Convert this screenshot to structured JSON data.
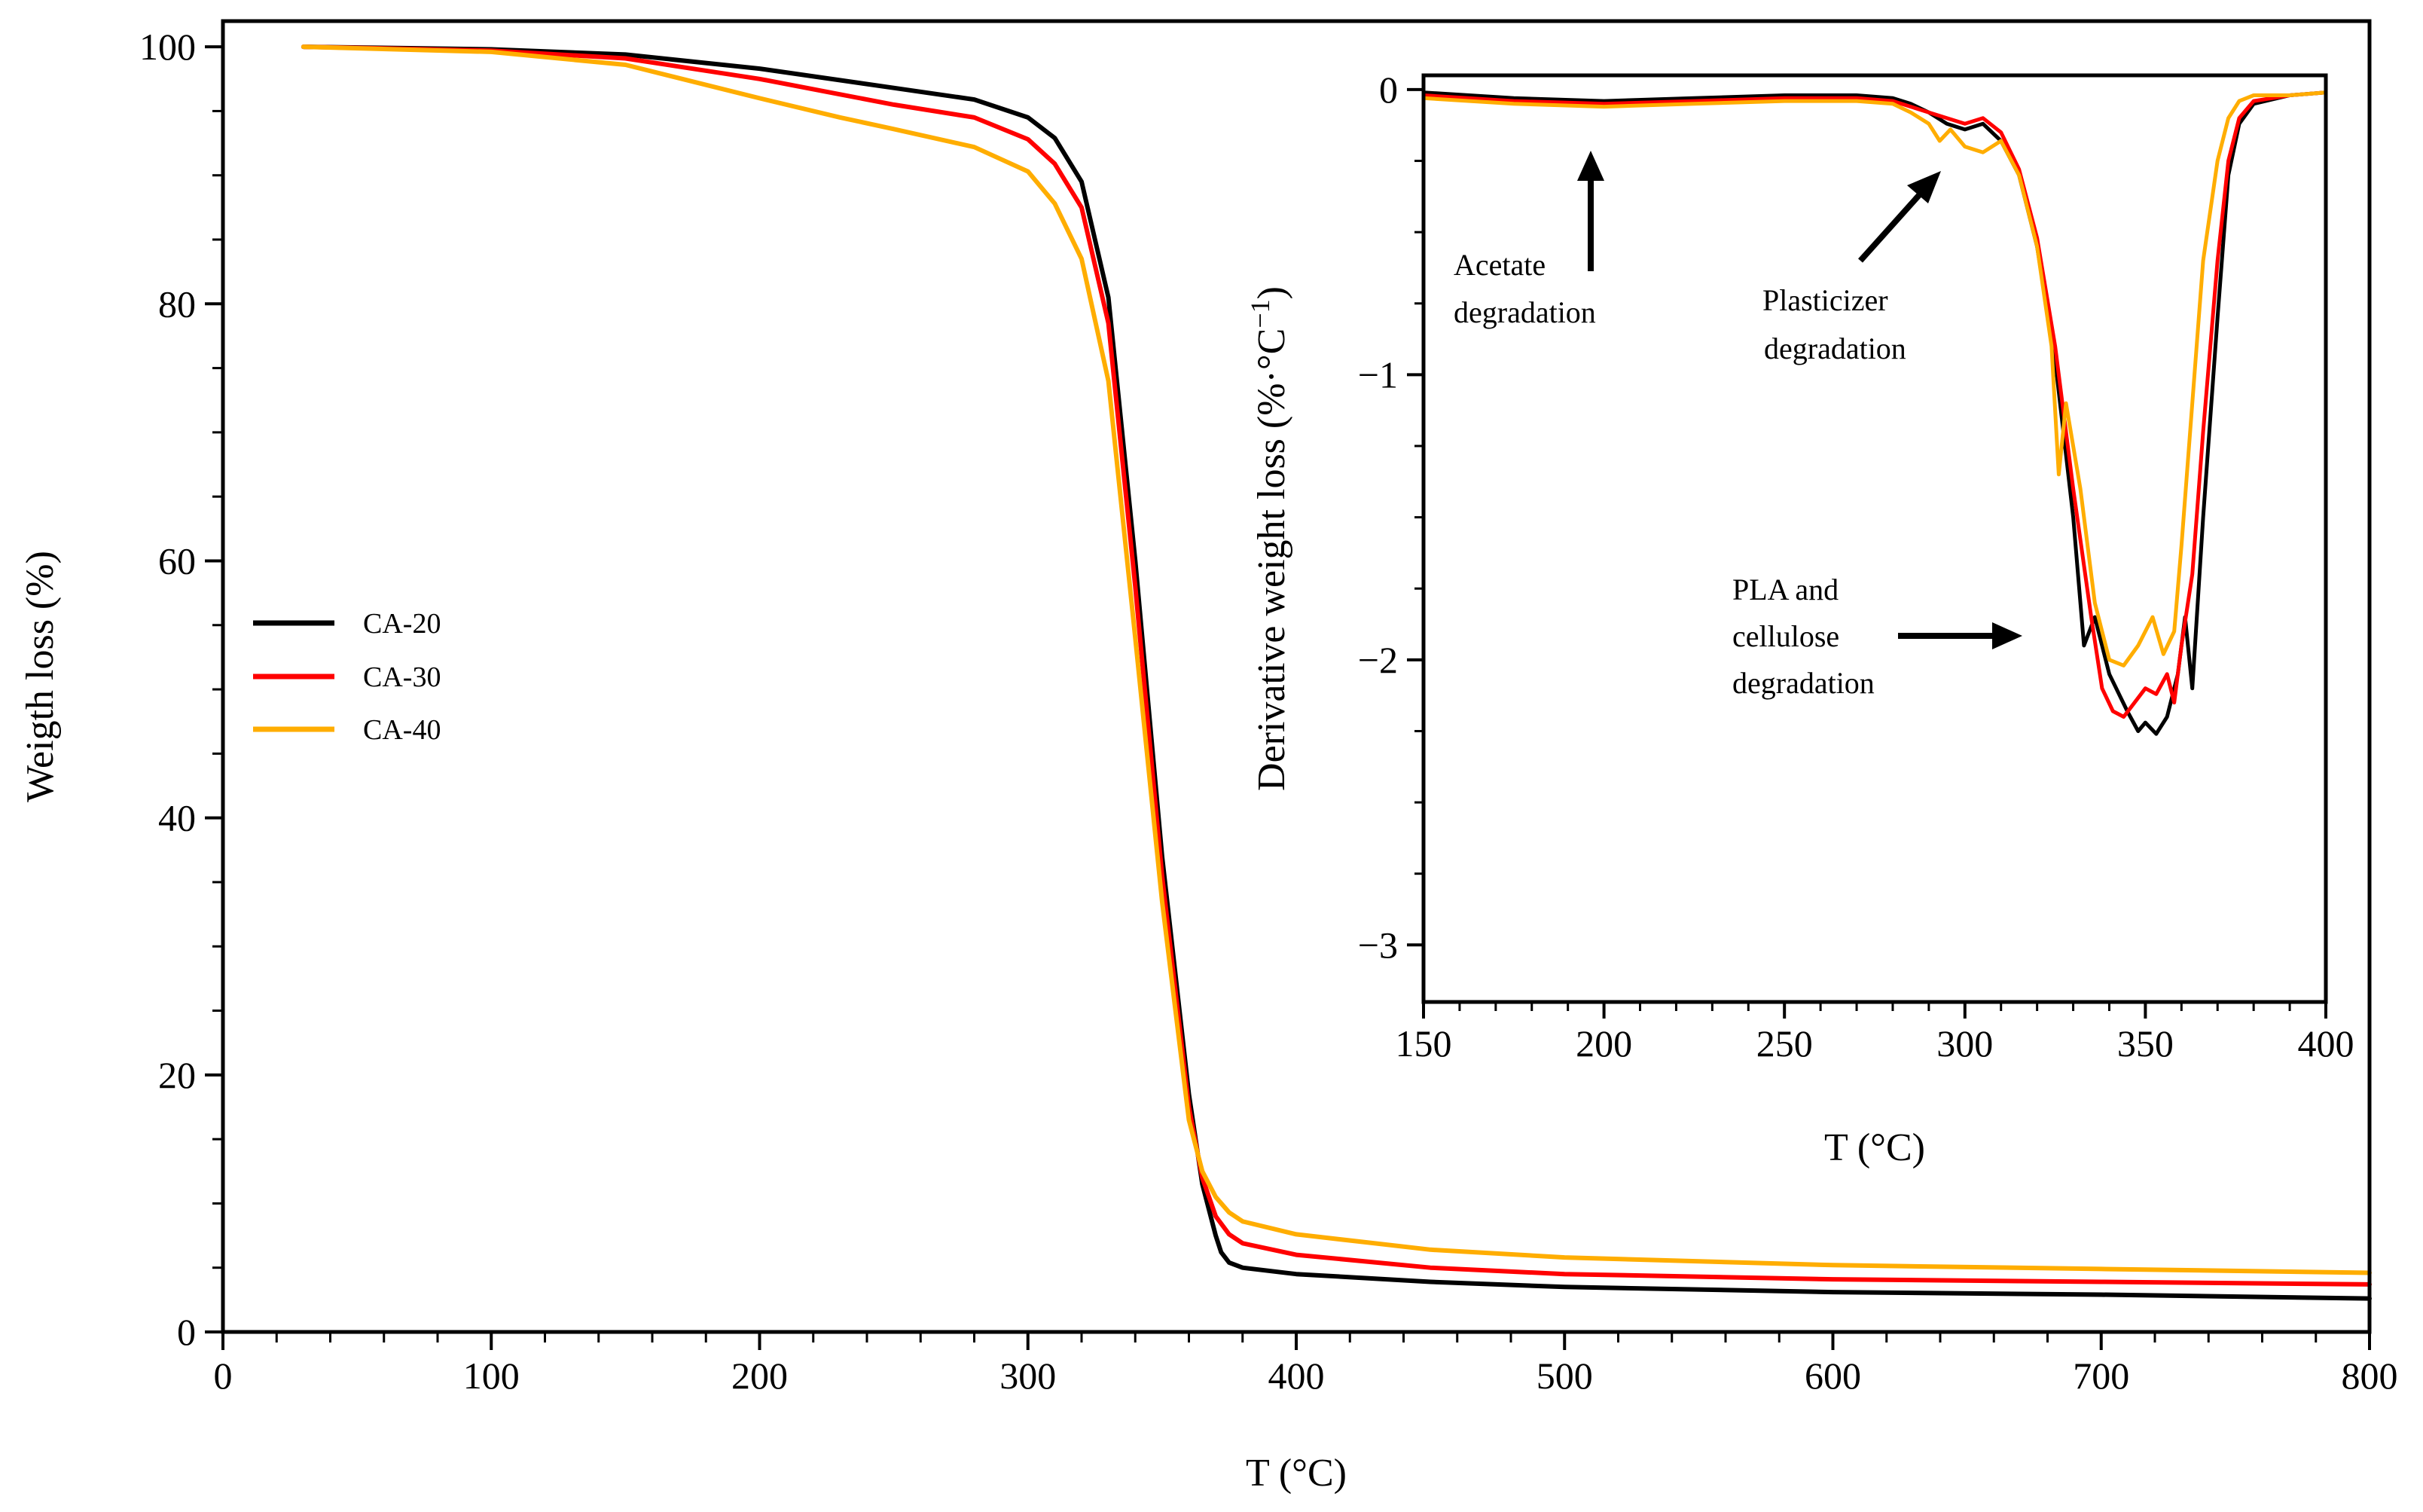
{
  "chart_data": [
    {
      "id": "main",
      "type": "line",
      "xlabel": "T (°C)",
      "ylabel": "Weigth loss (%)",
      "xlim": [
        0,
        800
      ],
      "ylim": [
        0,
        102
      ],
      "xticks": [
        0,
        100,
        200,
        300,
        400,
        500,
        600,
        700,
        800
      ],
      "yticks": [
        0,
        20,
        40,
        60,
        80,
        100
      ],
      "xticklabels": [
        "0",
        "100",
        "200",
        "300",
        "400",
        "500",
        "600",
        "700",
        "800"
      ],
      "yticklabels": [
        "0",
        "20",
        "40",
        "60",
        "80",
        "100"
      ],
      "legend_position": "center-left",
      "series": [
        {
          "name": "CA-20",
          "color": "#000000",
          "x": [
            30,
            100,
            150,
            200,
            250,
            280,
            300,
            310,
            320,
            330,
            340,
            350,
            360,
            365,
            370,
            372,
            375,
            380,
            400,
            450,
            500,
            600,
            700,
            800
          ],
          "y": [
            100,
            99.8,
            99.4,
            98.3,
            96.8,
            95.9,
            94.5,
            92.9,
            89.5,
            80.5,
            60.0,
            37.0,
            18.5,
            11.5,
            7.5,
            6.2,
            5.4,
            5.0,
            4.5,
            3.9,
            3.5,
            3.1,
            2.9,
            2.6
          ]
        },
        {
          "name": "CA-30",
          "color": "#ff0000",
          "x": [
            30,
            100,
            150,
            200,
            250,
            280,
            300,
            310,
            320,
            330,
            340,
            350,
            360,
            365,
            370,
            375,
            380,
            400,
            450,
            500,
            600,
            700,
            800
          ],
          "y": [
            100,
            99.7,
            99.1,
            97.5,
            95.5,
            94.5,
            92.8,
            90.9,
            87.5,
            78.5,
            58.0,
            35.5,
            17.5,
            12.0,
            9.0,
            7.6,
            6.9,
            6.0,
            5.0,
            4.5,
            4.1,
            3.9,
            3.7
          ]
        },
        {
          "name": "CA-40",
          "color": "#ffad00",
          "x": [
            30,
            100,
            150,
            200,
            230,
            250,
            280,
            300,
            310,
            320,
            330,
            340,
            350,
            360,
            365,
            370,
            375,
            380,
            400,
            450,
            500,
            600,
            700,
            800
          ],
          "y": [
            100,
            99.6,
            98.6,
            96.0,
            94.5,
            93.6,
            92.2,
            90.3,
            87.8,
            83.5,
            74.0,
            54.0,
            33.5,
            16.5,
            12.5,
            10.5,
            9.3,
            8.6,
            7.6,
            6.4,
            5.8,
            5.2,
            4.9,
            4.6
          ]
        }
      ]
    },
    {
      "id": "inset",
      "type": "line",
      "xlabel": "T (°C)",
      "ylabel": "Derivative weight loss (%·°C",
      "ylabel_superscript": "−1",
      "ylabel_close": ")",
      "xlim": [
        150,
        400
      ],
      "ylim": [
        -3.2,
        0.05
      ],
      "xticks": [
        150,
        200,
        250,
        300,
        350,
        400
      ],
      "yticks": [
        0,
        -1,
        -2,
        -3
      ],
      "xticklabels": [
        "150",
        "200",
        "250",
        "300",
        "350",
        "400"
      ],
      "yticklabels": [
        "0",
        "−1",
        "−2",
        "−3"
      ],
      "series": [
        {
          "name": "CA-20",
          "color": "#000000",
          "x": [
            150,
            175,
            200,
            225,
            250,
            270,
            280,
            285,
            290,
            295,
            300,
            305,
            310,
            315,
            320,
            325,
            330,
            333,
            336,
            340,
            345,
            348,
            350,
            353,
            356,
            359,
            361,
            363,
            366,
            370,
            373,
            376,
            380,
            390,
            400
          ],
          "y": [
            -0.01,
            -0.03,
            -0.04,
            -0.03,
            -0.02,
            -0.02,
            -0.03,
            -0.05,
            -0.08,
            -0.12,
            -0.14,
            -0.12,
            -0.18,
            -0.3,
            -0.55,
            -0.95,
            -1.5,
            -1.95,
            -1.85,
            -2.05,
            -2.18,
            -2.25,
            -2.22,
            -2.26,
            -2.2,
            -2.05,
            -1.85,
            -2.1,
            -1.5,
            -0.8,
            -0.3,
            -0.12,
            -0.05,
            -0.02,
            -0.01
          ]
        },
        {
          "name": "CA-30",
          "color": "#ff0000",
          "x": [
            150,
            175,
            200,
            225,
            250,
            270,
            280,
            285,
            290,
            295,
            300,
            305,
            310,
            315,
            320,
            325,
            330,
            335,
            338,
            341,
            344,
            347,
            350,
            353,
            356,
            358,
            360,
            363,
            366,
            370,
            373,
            376,
            380,
            390,
            400
          ],
          "y": [
            -0.02,
            -0.04,
            -0.05,
            -0.04,
            -0.03,
            -0.03,
            -0.04,
            -0.06,
            -0.08,
            -0.1,
            -0.12,
            -0.1,
            -0.15,
            -0.28,
            -0.52,
            -0.9,
            -1.4,
            -1.85,
            -2.1,
            -2.18,
            -2.2,
            -2.15,
            -2.1,
            -2.12,
            -2.05,
            -2.15,
            -1.95,
            -1.7,
            -1.2,
            -0.6,
            -0.25,
            -0.1,
            -0.04,
            -0.02,
            -0.01
          ]
        },
        {
          "name": "CA-40",
          "color": "#ffad00",
          "x": [
            150,
            175,
            200,
            225,
            250,
            270,
            280,
            285,
            290,
            293,
            296,
            300,
            305,
            310,
            315,
            320,
            324,
            326,
            328,
            332,
            336,
            340,
            344,
            348,
            350,
            352,
            355,
            358,
            360,
            363,
            366,
            370,
            373,
            376,
            380,
            390,
            400
          ],
          "y": [
            -0.03,
            -0.05,
            -0.06,
            -0.05,
            -0.04,
            -0.04,
            -0.05,
            -0.08,
            -0.12,
            -0.18,
            -0.14,
            -0.2,
            -0.22,
            -0.18,
            -0.3,
            -0.55,
            -0.9,
            -1.35,
            -1.1,
            -1.4,
            -1.8,
            -2.0,
            -2.02,
            -1.95,
            -1.9,
            -1.85,
            -1.98,
            -1.9,
            -1.6,
            -1.1,
            -0.6,
            -0.25,
            -0.1,
            -0.04,
            -0.02,
            -0.02,
            -0.01
          ]
        }
      ],
      "annotations": [
        {
          "lines": [
            "Acetate",
            "degradation"
          ],
          "arrow": "up"
        },
        {
          "lines": [
            "Plasticizer",
            "degradation"
          ],
          "arrow": "up-right"
        },
        {
          "lines": [
            "PLA and",
            "cellulose",
            "degradation"
          ],
          "arrow": "right"
        }
      ]
    }
  ]
}
